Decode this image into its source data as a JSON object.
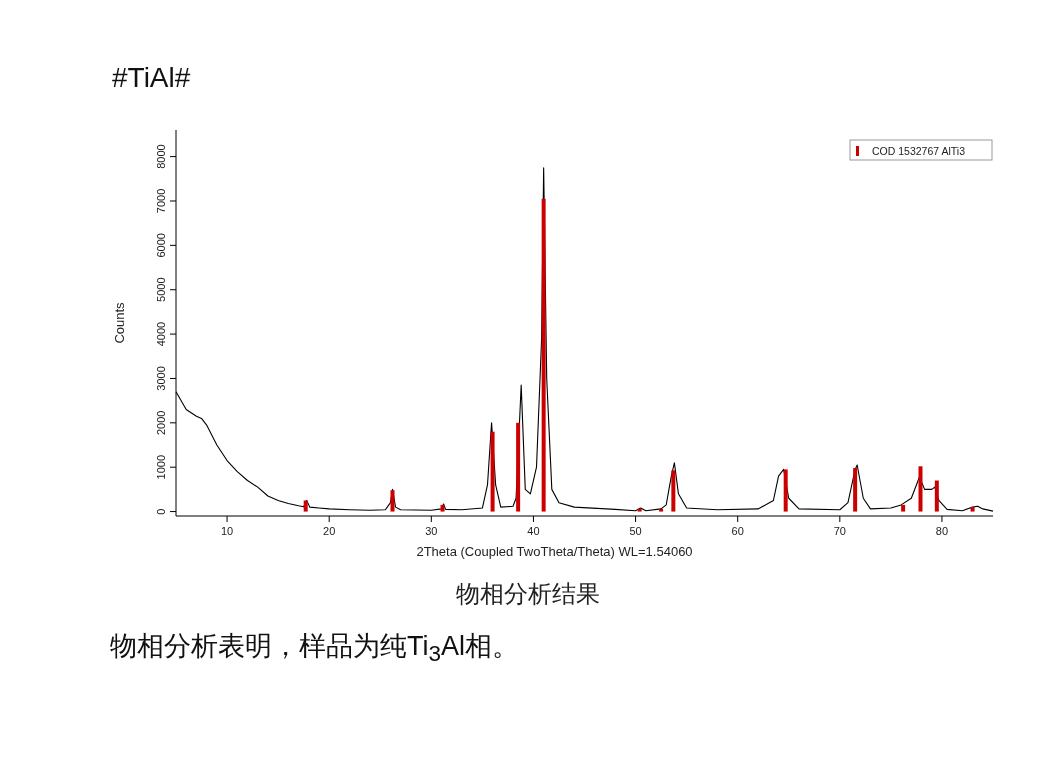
{
  "chart_data": {
    "type": "line",
    "title": "#TiAl#",
    "xlabel": "2Theta (Coupled TwoTheta/Theta) WL=1.54060",
    "ylabel": "Counts",
    "annotations": [
      "物相分析结果",
      "物相分析表明，样品为纯Ti$_{3}$Al相。"
    ],
    "xlim": [
      5,
      85
    ],
    "ylim": [
      -100,
      8600
    ],
    "xticks": [
      10,
      20,
      30,
      40,
      50,
      60,
      70,
      80
    ],
    "yticks": [
      0,
      1000,
      2000,
      3000,
      4000,
      5000,
      6000,
      7000,
      8000
    ],
    "grid": false,
    "legend": "top right",
    "marker": "none",
    "line_style": "solid",
    "series": [
      {
        "color": "#000000",
        "x": [
          5,
          6,
          7,
          7.5,
          8,
          9,
          10,
          11,
          12,
          13,
          14,
          15,
          16,
          17,
          17.5,
          17.8,
          18.1,
          19,
          20,
          22,
          24,
          25.5,
          26,
          26.2,
          26.5,
          27,
          30,
          31,
          31.2,
          31.4,
          33,
          35,
          35.5,
          35.9,
          36.3,
          36.8,
          38,
          38.3,
          38.8,
          39.2,
          39.7,
          40.3,
          40.8,
          41,
          41.3,
          41.8,
          42.5,
          44,
          48,
          50,
          50.5,
          51,
          52.5,
          53,
          53.5,
          53.8,
          54.2,
          55,
          58,
          62,
          63.5,
          64,
          64.5,
          65,
          66,
          70,
          70.8,
          71.5,
          71.7,
          72.3,
          73,
          75,
          76,
          77,
          77.8,
          78.3,
          79,
          79.3,
          79.7,
          80.5,
          82,
          83,
          83.5,
          84,
          85
        ],
        "values": [
          2700,
          2300,
          2150,
          2100,
          1950,
          1500,
          1150,
          900,
          700,
          550,
          350,
          250,
          180,
          130,
          110,
          250,
          100,
          80,
          60,
          40,
          30,
          40,
          200,
          500,
          100,
          40,
          30,
          60,
          170,
          50,
          40,
          80,
          600,
          2000,
          600,
          100,
          120,
          300,
          2850,
          500,
          400,
          1000,
          3900,
          7750,
          3000,
          500,
          200,
          100,
          50,
          20,
          80,
          20,
          60,
          150,
          800,
          1100,
          400,
          80,
          40,
          60,
          250,
          800,
          950,
          300,
          60,
          40,
          200,
          950,
          1050,
          300,
          60,
          80,
          150,
          300,
          780,
          500,
          500,
          550,
          250,
          50,
          20,
          100,
          120,
          60,
          10
        ]
      },
      {
        "type": "bar",
        "name": "COD 1532767 AlTi3",
        "color": "#cc0000",
        "x": [
          17.7,
          26.2,
          31.1,
          36.0,
          38.5,
          41.0,
          50.4,
          52.5,
          53.7,
          64.7,
          71.5,
          76.2,
          77.9,
          79.5,
          83.0
        ],
        "values": [
          250,
          480,
          150,
          1800,
          2000,
          7050,
          60,
          60,
          930,
          950,
          980,
          150,
          1020,
          700,
          100
        ]
      }
    ]
  }
}
